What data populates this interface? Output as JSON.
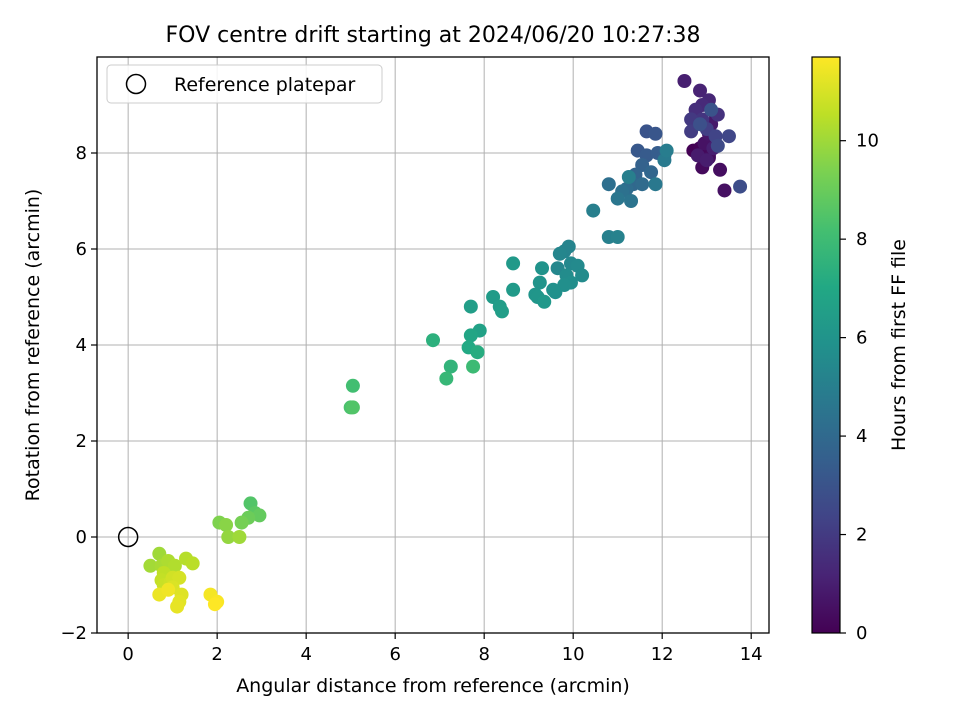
{
  "chart_data": {
    "type": "scatter",
    "title": "FOV centre drift starting at 2024/06/20 10:27:38",
    "xlabel": "Angular distance from reference (arcmin)",
    "ylabel": "Rotation from reference (arcmin)",
    "xlim": [
      -0.7,
      14.4
    ],
    "ylim": [
      -2.0,
      10.0
    ],
    "xticks": [
      0,
      2,
      4,
      6,
      8,
      10,
      12,
      14
    ],
    "yticks": [
      -2,
      0,
      2,
      4,
      6,
      8
    ],
    "grid": true,
    "legend": {
      "placement": "top-left",
      "entries": [
        "Reference platepar"
      ]
    },
    "reference_point": {
      "x": 0,
      "y": 0,
      "label": "Reference platepar"
    },
    "colorbar": {
      "label": "Hours from first FF file",
      "range": [
        0,
        11.7
      ],
      "ticks": [
        0,
        2,
        4,
        6,
        8,
        10
      ],
      "colormap": "viridis"
    },
    "point_series": [
      {
        "hour_range": [
          0.0,
          1.0
        ],
        "points": [
          [
            12.7,
            8.05
          ],
          [
            12.85,
            8.1
          ],
          [
            12.95,
            8.0
          ],
          [
            13.05,
            7.95
          ],
          [
            12.9,
            7.7
          ],
          [
            13.05,
            7.9
          ],
          [
            13.3,
            7.65
          ],
          [
            13.4,
            7.22
          ],
          [
            12.95,
            8.2
          ],
          [
            13.2,
            8.8
          ],
          [
            13.05,
            8.4
          ],
          [
            13.1,
            8.6
          ],
          [
            12.8,
            7.95
          ],
          [
            13.0,
            7.85
          ],
          [
            13.15,
            8.1
          ]
        ]
      },
      {
        "hour_range": [
          1.0,
          3.0
        ],
        "points": [
          [
            12.5,
            9.5
          ],
          [
            12.85,
            9.3
          ],
          [
            13.05,
            9.1
          ],
          [
            12.9,
            9.0
          ],
          [
            12.75,
            8.9
          ],
          [
            13.25,
            8.8
          ],
          [
            12.9,
            8.7
          ],
          [
            12.65,
            8.7
          ],
          [
            12.65,
            8.45
          ],
          [
            13.0,
            8.5
          ],
          [
            13.2,
            8.35
          ],
          [
            13.5,
            8.35
          ],
          [
            13.25,
            8.15
          ],
          [
            13.75,
            7.3
          ],
          [
            12.85,
            8.6
          ],
          [
            13.1,
            8.9
          ]
        ]
      },
      {
        "hour_range": [
          3.0,
          5.0
        ],
        "points": [
          [
            11.65,
            8.45
          ],
          [
            11.85,
            8.4
          ],
          [
            11.45,
            8.05
          ],
          [
            11.65,
            7.95
          ],
          [
            11.9,
            8.0
          ],
          [
            12.05,
            7.95
          ],
          [
            11.55,
            7.75
          ],
          [
            11.4,
            7.55
          ],
          [
            11.75,
            7.6
          ],
          [
            11.35,
            7.35
          ],
          [
            11.55,
            7.35
          ],
          [
            11.2,
            7.25
          ],
          [
            10.8,
            7.35
          ],
          [
            11.1,
            7.2
          ],
          [
            11.3,
            7.0
          ],
          [
            11.0,
            7.05
          ],
          [
            11.85,
            7.35
          ],
          [
            12.05,
            7.85
          ],
          [
            12.1,
            8.05
          ],
          [
            11.25,
            7.5
          ]
        ]
      },
      {
        "hour_range": [
          5.0,
          6.5
        ],
        "points": [
          [
            10.45,
            6.8
          ],
          [
            10.8,
            6.25
          ],
          [
            11.0,
            6.25
          ],
          [
            9.8,
            5.95
          ],
          [
            9.9,
            6.05
          ],
          [
            9.7,
            5.9
          ],
          [
            9.65,
            5.6
          ],
          [
            9.95,
            5.7
          ],
          [
            10.1,
            5.65
          ],
          [
            10.2,
            5.45
          ],
          [
            9.85,
            5.45
          ],
          [
            9.95,
            5.3
          ],
          [
            9.8,
            5.25
          ],
          [
            9.6,
            5.1
          ],
          [
            9.55,
            5.15
          ],
          [
            9.3,
            5.6
          ],
          [
            9.25,
            5.3
          ],
          [
            9.15,
            5.05
          ],
          [
            9.2,
            5.0
          ],
          [
            9.35,
            4.9
          ],
          [
            8.65,
            5.7
          ],
          [
            8.65,
            5.15
          ],
          [
            8.2,
            5.0
          ],
          [
            8.35,
            4.8
          ],
          [
            8.4,
            4.7
          ]
        ]
      },
      {
        "hour_range": [
          6.5,
          8.5
        ],
        "points": [
          [
            7.7,
            4.8
          ],
          [
            7.9,
            4.3
          ],
          [
            7.7,
            4.2
          ],
          [
            7.65,
            3.95
          ],
          [
            7.85,
            3.85
          ],
          [
            6.85,
            4.1
          ],
          [
            7.25,
            3.55
          ],
          [
            7.15,
            3.3
          ],
          [
            7.75,
            3.55
          ],
          [
            5.05,
            3.15
          ],
          [
            5.0,
            2.7
          ],
          [
            5.05,
            2.7
          ]
        ]
      },
      {
        "hour_range": [
          8.5,
          10.0
        ],
        "points": [
          [
            2.75,
            0.7
          ],
          [
            2.85,
            0.5
          ],
          [
            2.95,
            0.45
          ],
          [
            2.7,
            0.4
          ],
          [
            2.55,
            0.3
          ],
          [
            2.05,
            0.3
          ],
          [
            2.2,
            0.25
          ],
          [
            2.25,
            0.0
          ],
          [
            2.5,
            0.0
          ]
        ]
      },
      {
        "hour_range": [
          10.0,
          11.7
        ],
        "points": [
          [
            0.7,
            -0.35
          ],
          [
            0.5,
            -0.6
          ],
          [
            0.75,
            -0.6
          ],
          [
            0.9,
            -0.5
          ],
          [
            1.05,
            -0.6
          ],
          [
            1.3,
            -0.45
          ],
          [
            1.45,
            -0.55
          ],
          [
            0.8,
            -0.75
          ],
          [
            0.75,
            -0.9
          ],
          [
            0.8,
            -1.0
          ],
          [
            0.95,
            -0.95
          ],
          [
            1.0,
            -0.85
          ],
          [
            1.15,
            -0.85
          ],
          [
            1.0,
            -1.05
          ],
          [
            1.2,
            -1.2
          ],
          [
            1.15,
            -1.35
          ],
          [
            1.1,
            -1.45
          ],
          [
            0.7,
            -1.2
          ],
          [
            0.9,
            -1.1
          ],
          [
            1.85,
            -1.2
          ],
          [
            2.0,
            -1.35
          ],
          [
            1.95,
            -1.4
          ]
        ]
      }
    ]
  }
}
